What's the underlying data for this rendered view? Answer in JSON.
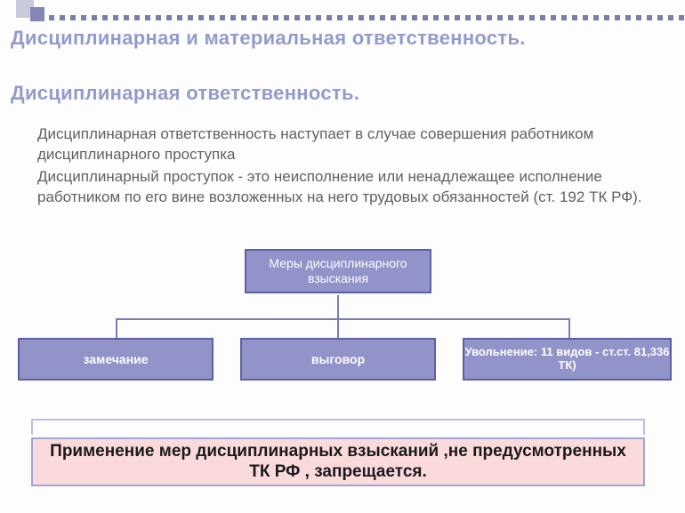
{
  "heading1": "Дисциплинарная и материальная ответственность.",
  "heading2": "Дисциплинарная ответственность.",
  "para1": "Дисциплинарная ответственность наступает в случае совершения работником дисциплинарного проступка",
  "para2": "Дисциплинарный проступок - это неисполнение или ненадлежащее исполнение работником по его вине возложенных на него трудовых обязанностей  (ст. 192 ТК РФ).",
  "chart": {
    "type": "tree",
    "root": "Меры дисциплинарного взыскания",
    "children": [
      "замечание",
      "выговор",
      "Увольнение:\n11 видов - ст.ст. 81,336 ТК)"
    ],
    "box_fill": "#9193c9",
    "box_border": "#5c60a3",
    "box_text_color": "#ffffff",
    "connector_color": "#7a7cb0",
    "root_fontsize": 14,
    "child_fontsize": 14,
    "child_fontweight": "bold"
  },
  "bottom_bar": "Применение мер дисциплинарных взысканий ,не предусмотренных ТК РФ , запрещается.",
  "bottom_bar_bg": "#fbdadc",
  "bottom_bar_border": "#9fa4d3",
  "heading_color": "#949bcb",
  "para_color": "#616161",
  "decoration": {
    "square1_color": "#c9cad9",
    "square2_color": "#8486b8",
    "dotline_color": "#7d7ea8"
  }
}
